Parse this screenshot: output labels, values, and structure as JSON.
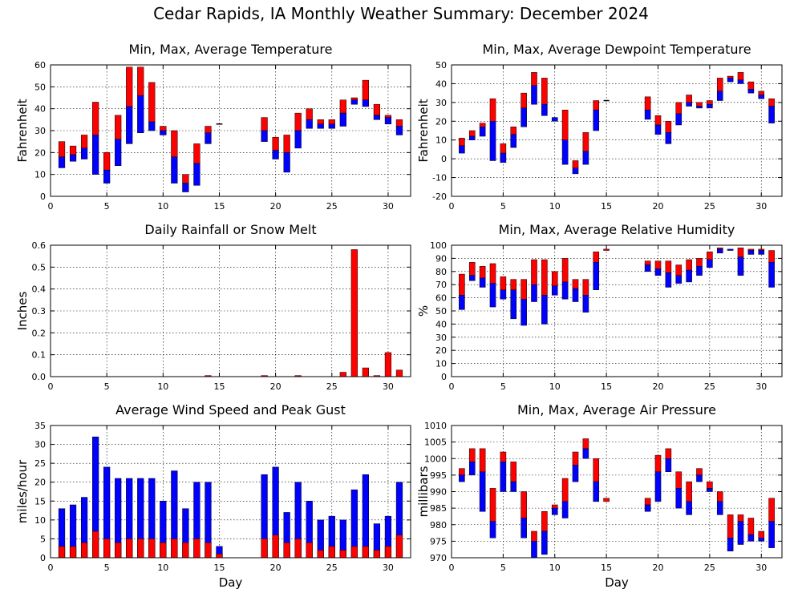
{
  "title": "Cedar Rapids, IA Monthly Weather Summary: December 2024",
  "colors": {
    "upper": "#ff0000",
    "lower": "#0000ff",
    "line": "#000000"
  },
  "chart_data": [
    {
      "id": "temp",
      "type": "bar",
      "subtype": "floating-range",
      "title": "Min, Max, Average Temperature",
      "xlabel": "",
      "ylabel": "Fahrenheit",
      "xlim": [
        0,
        32
      ],
      "ylim": [
        0,
        60
      ],
      "xticks": [
        0,
        5,
        10,
        15,
        20,
        25,
        30
      ],
      "yticks": [
        0,
        10,
        20,
        30,
        40,
        50,
        60
      ],
      "grid": true,
      "days": [
        1,
        2,
        3,
        4,
        5,
        6,
        7,
        8,
        9,
        10,
        11,
        12,
        13,
        14,
        15,
        19,
        20,
        21,
        22,
        23,
        24,
        25,
        26,
        27,
        28,
        29,
        30,
        31
      ],
      "min": [
        13,
        16,
        17,
        10,
        6,
        14,
        24,
        29,
        30,
        28,
        6,
        2,
        5,
        24,
        33,
        25,
        17,
        11,
        22,
        31,
        31,
        31,
        32,
        42,
        41,
        35,
        33,
        28
      ],
      "avg": [
        18,
        19,
        22,
        28,
        12,
        26,
        41,
        46,
        34,
        30,
        18,
        6,
        15,
        29,
        33,
        30,
        21,
        20,
        30,
        35,
        33,
        33,
        38,
        44,
        44,
        37,
        36,
        32
      ],
      "max": [
        25,
        23,
        28,
        43,
        20,
        37,
        59,
        59,
        52,
        32,
        30,
        10,
        24,
        32,
        33,
        36,
        27,
        28,
        38,
        40,
        35,
        35,
        44,
        45,
        53,
        42,
        37,
        35
      ]
    },
    {
      "id": "dewpoint",
      "type": "bar",
      "subtype": "floating-range",
      "title": "Min, Max, Average Dewpoint Temperature",
      "xlabel": "",
      "ylabel": "Fahrenheit",
      "xlim": [
        0,
        32
      ],
      "ylim": [
        -20,
        50
      ],
      "xticks": [
        0,
        5,
        10,
        15,
        20,
        25,
        30
      ],
      "yticks": [
        -20,
        -10,
        0,
        10,
        20,
        30,
        40,
        50
      ],
      "grid": true,
      "days": [
        1,
        2,
        3,
        4,
        5,
        6,
        7,
        8,
        9,
        10,
        11,
        12,
        13,
        14,
        15,
        19,
        20,
        21,
        22,
        23,
        24,
        25,
        26,
        27,
        28,
        29,
        30,
        31
      ],
      "min": [
        3,
        10,
        12,
        -1,
        -2,
        6,
        17,
        29,
        23,
        20,
        -3,
        -8,
        -3,
        15,
        31,
        21,
        13,
        8,
        18,
        28,
        27,
        27,
        31,
        41,
        40,
        35,
        32,
        19
      ],
      "avg": [
        7,
        12,
        17,
        20,
        3,
        13,
        27,
        39,
        29,
        22,
        10,
        -5,
        4,
        26,
        31,
        26,
        18,
        14,
        24,
        30,
        28,
        29,
        36,
        43,
        42,
        37,
        34,
        28
      ],
      "max": [
        11,
        15,
        19,
        32,
        8,
        17,
        35,
        46,
        43,
        22,
        26,
        -1,
        14,
        31,
        31,
        33,
        23,
        20,
        30,
        34,
        30,
        31,
        43,
        44,
        46,
        41,
        36,
        32
      ]
    },
    {
      "id": "rain",
      "type": "bar",
      "title": "Daily Rainfall or Snow Melt",
      "xlabel": "",
      "ylabel": "Inches",
      "xlim": [
        0,
        32
      ],
      "ylim": [
        0,
        0.6
      ],
      "xticks": [
        0,
        5,
        10,
        15,
        20,
        25,
        30
      ],
      "yticks": [
        0.0,
        0.1,
        0.2,
        0.3,
        0.4,
        0.5,
        0.6
      ],
      "ytick_labels": [
        "0.0",
        "0.1",
        "0.2",
        "0.3",
        "0.4",
        "0.5",
        "0.6"
      ],
      "grid": true,
      "days": [
        14,
        19,
        22,
        26,
        27,
        28,
        29,
        30,
        31
      ],
      "values": [
        0.005,
        0.005,
        0.005,
        0.02,
        0.58,
        0.04,
        0.005,
        0.11,
        0.03
      ]
    },
    {
      "id": "humidity",
      "type": "bar",
      "subtype": "floating-range",
      "title": "Min, Max, Average Relative Humidity",
      "xlabel": "",
      "ylabel": "%",
      "xlim": [
        0,
        32
      ],
      "ylim": [
        0,
        100
      ],
      "xticks": [
        0,
        5,
        10,
        15,
        20,
        25,
        30
      ],
      "yticks": [
        0,
        10,
        20,
        30,
        40,
        50,
        60,
        70,
        80,
        90,
        100
      ],
      "grid": true,
      "days": [
        1,
        2,
        3,
        4,
        5,
        6,
        7,
        8,
        9,
        10,
        11,
        12,
        13,
        14,
        15,
        19,
        20,
        21,
        22,
        23,
        24,
        25,
        26,
        27,
        28,
        29,
        30,
        31
      ],
      "min": [
        51,
        73,
        68,
        53,
        59,
        44,
        39,
        57,
        40,
        62,
        59,
        57,
        49,
        66,
        96,
        80,
        77,
        68,
        71,
        72,
        77,
        83,
        94,
        96,
        77,
        93,
        93,
        68
      ],
      "avg": [
        62,
        77,
        75,
        71,
        66,
        66,
        59,
        70,
        62,
        69,
        72,
        67,
        62,
        87,
        96,
        85,
        82,
        79,
        77,
        81,
        84,
        89,
        97,
        97,
        91,
        96,
        96,
        87
      ],
      "max": [
        78,
        87,
        84,
        86,
        76,
        74,
        74,
        89,
        89,
        80,
        90,
        74,
        74,
        95,
        97,
        88,
        88,
        88,
        85,
        89,
        90,
        95,
        98,
        97,
        98,
        97,
        97,
        96
      ]
    },
    {
      "id": "wind",
      "type": "bar",
      "subtype": "stacked-overlay",
      "title": "Average Wind Speed and Peak Gust",
      "xlabel": "Day",
      "ylabel": "miles/hour",
      "xlim": [
        0,
        32
      ],
      "ylim": [
        0,
        35
      ],
      "xticks": [
        0,
        5,
        10,
        15,
        20,
        25,
        30
      ],
      "yticks": [
        0,
        5,
        10,
        15,
        20,
        25,
        30,
        35
      ],
      "grid": true,
      "days": [
        1,
        2,
        3,
        4,
        5,
        6,
        7,
        8,
        9,
        10,
        11,
        12,
        13,
        14,
        15,
        19,
        20,
        21,
        22,
        23,
        24,
        25,
        26,
        27,
        28,
        29,
        30,
        31
      ],
      "average": [
        3,
        3,
        4,
        7,
        5,
        4,
        5,
        5,
        5,
        4,
        5,
        4,
        5,
        4,
        1,
        5,
        6,
        4,
        5,
        4,
        2,
        3,
        2,
        3,
        3,
        2,
        3,
        6
      ],
      "peak_gust": [
        13,
        14,
        16,
        32,
        24,
        21,
        21,
        21,
        21,
        15,
        23,
        13,
        20,
        20,
        3,
        22,
        24,
        12,
        20,
        15,
        10,
        11,
        10,
        18,
        22,
        9,
        11,
        20
      ]
    },
    {
      "id": "pressure",
      "type": "bar",
      "subtype": "floating-range",
      "title": "Min, Max, Average Air Pressure",
      "xlabel": "Day",
      "ylabel": "millibars",
      "xlim": [
        0,
        32
      ],
      "ylim": [
        970,
        1010
      ],
      "xticks": [
        0,
        5,
        10,
        15,
        20,
        25,
        30
      ],
      "yticks": [
        970,
        975,
        980,
        985,
        990,
        995,
        1000,
        1005,
        1010
      ],
      "grid": true,
      "days": [
        1,
        2,
        3,
        4,
        5,
        6,
        7,
        8,
        9,
        10,
        11,
        12,
        13,
        14,
        15,
        19,
        20,
        21,
        22,
        23,
        24,
        25,
        26,
        27,
        28,
        29,
        30,
        31
      ],
      "min": [
        993,
        995,
        984,
        976,
        990,
        990,
        976,
        970,
        971,
        983,
        982,
        993,
        1000,
        987,
        987,
        984,
        987,
        996,
        985,
        983,
        993,
        990,
        983,
        972,
        974,
        975,
        975,
        973
      ],
      "avg": [
        995,
        999,
        996,
        981,
        999,
        993,
        982,
        975,
        978,
        985,
        987,
        998,
        1003,
        993,
        987,
        986,
        996,
        1000,
        991,
        987,
        995,
        991,
        987,
        976,
        981,
        977,
        976,
        981
      ],
      "max": [
        997,
        1003,
        1003,
        991,
        1002,
        999,
        990,
        978,
        984,
        986,
        994,
        1002,
        1006,
        1000,
        988,
        988,
        1001,
        1003,
        996,
        993,
        997,
        993,
        990,
        983,
        983,
        982,
        978,
        988
      ]
    }
  ]
}
